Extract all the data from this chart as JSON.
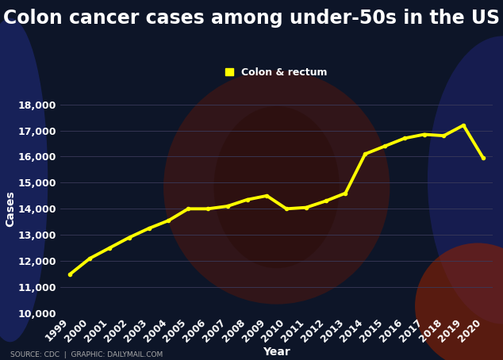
{
  "title": "Colon cancer cases among under-50s in the US",
  "legend_label": "Colon & rectum",
  "xlabel": "Year",
  "ylabel": "Cases",
  "source_text": "SOURCE: CDC  |  GRAPHIC: DAILYMAIL.COM",
  "years": [
    1999,
    2000,
    2001,
    2002,
    2003,
    2004,
    2005,
    2006,
    2007,
    2008,
    2009,
    2010,
    2011,
    2012,
    2013,
    2014,
    2015,
    2016,
    2017,
    2018,
    2019,
    2020
  ],
  "values": [
    11500,
    12100,
    12500,
    12900,
    13250,
    13550,
    14000,
    14000,
    14100,
    14350,
    14500,
    14000,
    14050,
    14300,
    14600,
    16100,
    16400,
    16700,
    16850,
    16800,
    17200,
    15950
  ],
  "line_color": "#FFFF00",
  "line_width": 2.8,
  "marker": "o",
  "marker_size": 3,
  "marker_color": "#FFFF00",
  "bg_color": "#0d1528",
  "plot_bg_color": "#0d1528",
  "grid_color": "#3a3a5a",
  "text_color": "#ffffff",
  "title_color": "#ffffff",
  "ylim": [
    10000,
    18000
  ],
  "yticks": [
    10000,
    11000,
    12000,
    13000,
    14000,
    15000,
    16000,
    17000,
    18000
  ],
  "title_fontsize": 17,
  "axis_label_fontsize": 10,
  "tick_fontsize": 9,
  "source_fontsize": 6.5,
  "legend_square_color": "#FFFF00"
}
